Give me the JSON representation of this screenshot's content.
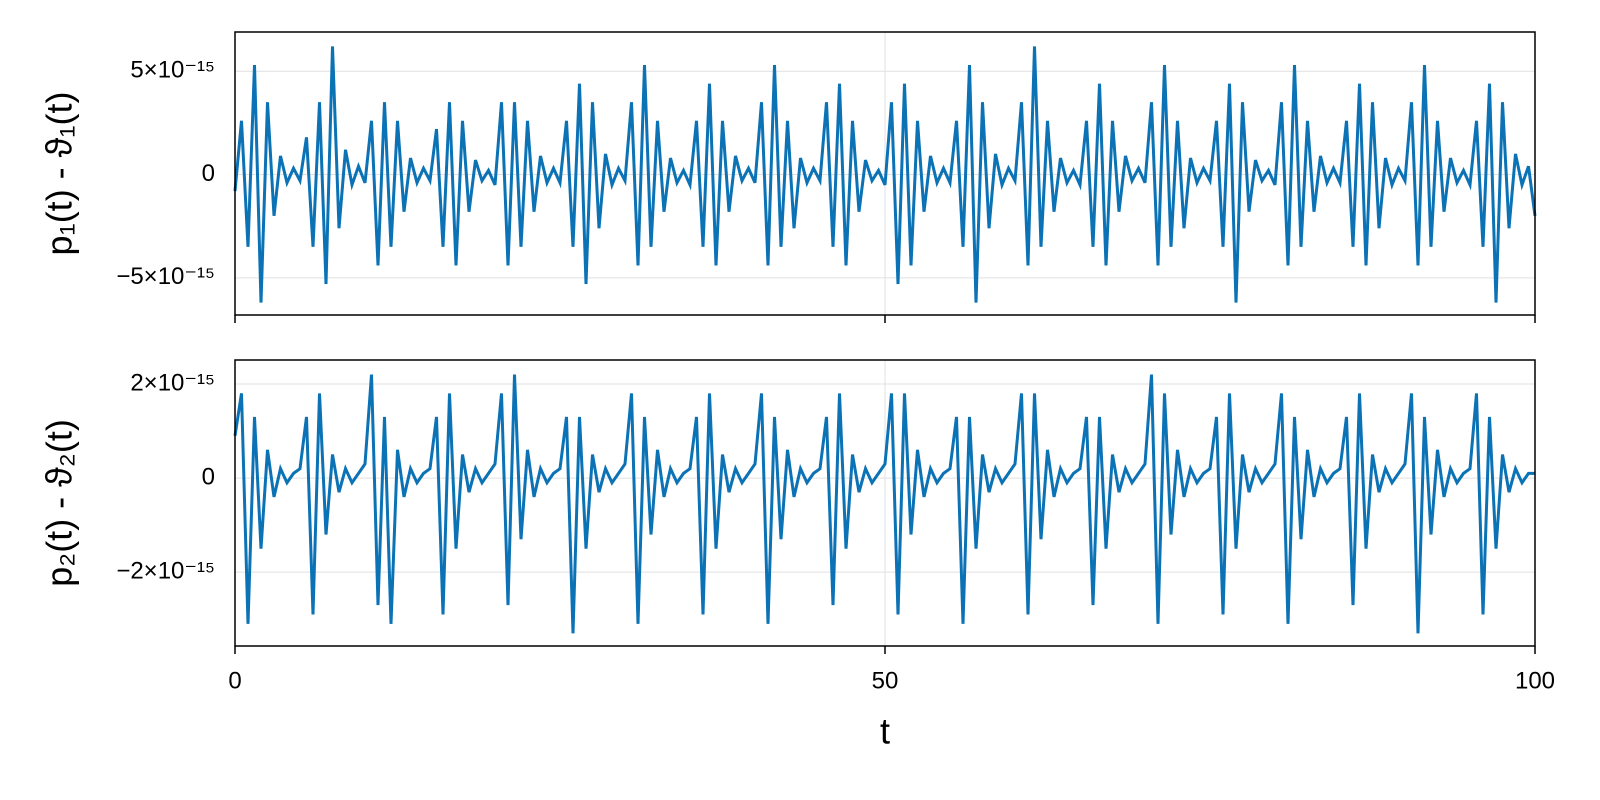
{
  "chart_data": [
    {
      "type": "line",
      "y_label": "p₁(t) - ϑ₁(t)",
      "xlim": [
        0,
        100
      ],
      "xticks": [
        0,
        50,
        100
      ],
      "ylim": [
        -6.8e-15,
        6.9e-15
      ],
      "yticks": [
        {
          "value": -5e-15,
          "label": "−5×10⁻¹⁵"
        },
        0,
        {
          "value": 5e-15,
          "label": "5×10⁻¹⁵"
        }
      ],
      "grid": true,
      "x": [
        0,
        0.5,
        1,
        1.5,
        2,
        2.5,
        3,
        3.5,
        4,
        4.5,
        5,
        5.5,
        6,
        6.5,
        7,
        7.5,
        8,
        8.5,
        9,
        9.5,
        10,
        10.5,
        11,
        11.5,
        12,
        12.5,
        13,
        13.5,
        14,
        14.5,
        15,
        15.5,
        16,
        16.5,
        17,
        17.5,
        18,
        18.5,
        19,
        19.5,
        20,
        20.5,
        21,
        21.5,
        22,
        22.5,
        23,
        23.5,
        24,
        24.5,
        25,
        25.5,
        26,
        26.5,
        27,
        27.5,
        28,
        28.5,
        29,
        29.5,
        30,
        30.5,
        31,
        31.5,
        32,
        32.5,
        33,
        33.5,
        34,
        34.5,
        35,
        35.5,
        36,
        36.5,
        37,
        37.5,
        38,
        38.5,
        39,
        39.5,
        40,
        40.5,
        41,
        41.5,
        42,
        42.5,
        43,
        43.5,
        44,
        44.5,
        45,
        45.5,
        46,
        46.5,
        47,
        47.5,
        48,
        48.5,
        49,
        49.5,
        50,
        50.5,
        51,
        51.5,
        52,
        52.5,
        53,
        53.5,
        54,
        54.5,
        55,
        55.5,
        56,
        56.5,
        57,
        57.5,
        58,
        58.5,
        59,
        59.5,
        60,
        60.5,
        61,
        61.5,
        62,
        62.5,
        63,
        63.5,
        64,
        64.5,
        65,
        65.5,
        66,
        66.5,
        67,
        67.5,
        68,
        68.5,
        69,
        69.5,
        70,
        70.5,
        71,
        71.5,
        72,
        72.5,
        73,
        73.5,
        74,
        74.5,
        75,
        75.5,
        76,
        76.5,
        77,
        77.5,
        78,
        78.5,
        79,
        79.5,
        80,
        80.5,
        81,
        81.5,
        82,
        82.5,
        83,
        83.5,
        84,
        84.5,
        85,
        85.5,
        86,
        86.5,
        87,
        87.5,
        88,
        88.5,
        89,
        89.5,
        90,
        90.5,
        91,
        91.5,
        92,
        92.5,
        93,
        93.5,
        94,
        94.5,
        95,
        95.5,
        96,
        96.5,
        97,
        97.5,
        98,
        98.5,
        99,
        99.5,
        100
      ],
      "series": [
        {
          "color": "#0b72b5",
          "values": [
            -8e-16,
            2.6e-15,
            -3.5e-15,
            5.3e-15,
            -6.2e-15,
            3.5e-15,
            -2e-15,
            9e-16,
            -4e-16,
            3e-16,
            -3e-16,
            1.8e-15,
            -3.5e-15,
            3.5e-15,
            -5.3e-15,
            6.2e-15,
            -2.6e-15,
            1.2e-15,
            -5e-16,
            4e-16,
            -4e-16,
            2.6e-15,
            -4.4e-15,
            3.5e-15,
            -3.5e-15,
            2.6e-15,
            -1.8e-15,
            8e-16,
            -4e-16,
            3e-16,
            -3e-16,
            2.2e-15,
            -3.5e-15,
            3.5e-15,
            -4.4e-15,
            2.6e-15,
            -1.8e-15,
            7e-16,
            -3e-16,
            2e-16,
            -5e-16,
            3.5e-15,
            -4.4e-15,
            3.5e-15,
            -3.5e-15,
            2.6e-15,
            -1.8e-15,
            9e-16,
            -4e-16,
            3e-16,
            -4e-16,
            2.6e-15,
            -3.5e-15,
            4.4e-15,
            -5.3e-15,
            3.5e-15,
            -2.6e-15,
            1e-15,
            -5e-16,
            3e-16,
            -3e-16,
            3.5e-15,
            -4.4e-15,
            5.3e-15,
            -3.5e-15,
            2.6e-15,
            -1.8e-15,
            8e-16,
            -4e-16,
            2e-16,
            -5e-16,
            2.6e-15,
            -3.5e-15,
            4.4e-15,
            -4.4e-15,
            2.6e-15,
            -1.8e-15,
            9e-16,
            -3e-16,
            3e-16,
            -4e-16,
            3.5e-15,
            -4.4e-15,
            5.3e-15,
            -3.5e-15,
            2.6e-15,
            -2.6e-15,
            8e-16,
            -4e-16,
            3e-16,
            -3e-16,
            3.5e-15,
            -3.5e-15,
            4.4e-15,
            -4.4e-15,
            2.6e-15,
            -1.8e-15,
            7e-16,
            -3e-16,
            2e-16,
            -5e-16,
            3.5e-15,
            -5.3e-15,
            4.4e-15,
            -4.4e-15,
            2.6e-15,
            -1.8e-15,
            9e-16,
            -4e-16,
            3e-16,
            -4e-16,
            2.6e-15,
            -3.5e-15,
            5.3e-15,
            -6.2e-15,
            3.5e-15,
            -2.6e-15,
            1e-15,
            -5e-16,
            3e-16,
            -3e-16,
            3.5e-15,
            -4.4e-15,
            6.2e-15,
            -3.5e-15,
            2.6e-15,
            -1.8e-15,
            8e-16,
            -4e-16,
            2e-16,
            -5e-16,
            2.6e-15,
            -3.5e-15,
            4.4e-15,
            -4.4e-15,
            2.6e-15,
            -1.8e-15,
            9e-16,
            -3e-16,
            3e-16,
            -4e-16,
            3.5e-15,
            -4.4e-15,
            5.3e-15,
            -3.5e-15,
            2.6e-15,
            -2.6e-15,
            8e-16,
            -4e-16,
            3e-16,
            -3e-16,
            2.6e-15,
            -3.5e-15,
            4.4e-15,
            -6.2e-15,
            3.5e-15,
            -1.8e-15,
            7e-16,
            -3e-16,
            2e-16,
            -5e-16,
            3.5e-15,
            -4.4e-15,
            5.3e-15,
            -3.5e-15,
            2.6e-15,
            -1.8e-15,
            9e-16,
            -4e-16,
            3e-16,
            -4e-16,
            2.6e-15,
            -3.5e-15,
            4.4e-15,
            -4.4e-15,
            3.5e-15,
            -2.6e-15,
            8e-16,
            -5e-16,
            3e-16,
            -3e-16,
            3.5e-15,
            -4.4e-15,
            5.3e-15,
            -3.5e-15,
            2.6e-15,
            -1.8e-15,
            8e-16,
            -4e-16,
            2e-16,
            -5e-16,
            2.6e-15,
            -3.5e-15,
            4.4e-15,
            -6.2e-15,
            3.5e-15,
            -2.6e-15,
            1e-15,
            -5e-16,
            4e-16,
            -2e-15
          ]
        }
      ]
    },
    {
      "type": "line",
      "y_label": "p₂(t) - ϑ₂(t)",
      "x_label": "t",
      "xlim": [
        0,
        100
      ],
      "xticks": [
        0,
        50,
        100
      ],
      "ylim": [
        -3.57e-15,
        2.51e-15
      ],
      "yticks": [
        {
          "value": -2e-15,
          "label": "−2×10⁻¹⁵"
        },
        0,
        {
          "value": 2e-15,
          "label": "2×10⁻¹⁵"
        }
      ],
      "grid": true,
      "x": [
        0,
        0.5,
        1,
        1.5,
        2,
        2.5,
        3,
        3.5,
        4,
        4.5,
        5,
        5.5,
        6,
        6.5,
        7,
        7.5,
        8,
        8.5,
        9,
        9.5,
        10,
        10.5,
        11,
        11.5,
        12,
        12.5,
        13,
        13.5,
        14,
        14.5,
        15,
        15.5,
        16,
        16.5,
        17,
        17.5,
        18,
        18.5,
        19,
        19.5,
        20,
        20.5,
        21,
        21.5,
        22,
        22.5,
        23,
        23.5,
        24,
        24.5,
        25,
        25.5,
        26,
        26.5,
        27,
        27.5,
        28,
        28.5,
        29,
        29.5,
        30,
        30.5,
        31,
        31.5,
        32,
        32.5,
        33,
        33.5,
        34,
        34.5,
        35,
        35.5,
        36,
        36.5,
        37,
        37.5,
        38,
        38.5,
        39,
        39.5,
        40,
        40.5,
        41,
        41.5,
        42,
        42.5,
        43,
        43.5,
        44,
        44.5,
        45,
        45.5,
        46,
        46.5,
        47,
        47.5,
        48,
        48.5,
        49,
        49.5,
        50,
        50.5,
        51,
        51.5,
        52,
        52.5,
        53,
        53.5,
        54,
        54.5,
        55,
        55.5,
        56,
        56.5,
        57,
        57.5,
        58,
        58.5,
        59,
        59.5,
        60,
        60.5,
        61,
        61.5,
        62,
        62.5,
        63,
        63.5,
        64,
        64.5,
        65,
        65.5,
        66,
        66.5,
        67,
        67.5,
        68,
        68.5,
        69,
        69.5,
        70,
        70.5,
        71,
        71.5,
        72,
        72.5,
        73,
        73.5,
        74,
        74.5,
        75,
        75.5,
        76,
        76.5,
        77,
        77.5,
        78,
        78.5,
        79,
        79.5,
        80,
        80.5,
        81,
        81.5,
        82,
        82.5,
        83,
        83.5,
        84,
        84.5,
        85,
        85.5,
        86,
        86.5,
        87,
        87.5,
        88,
        88.5,
        89,
        89.5,
        90,
        90.5,
        91,
        91.5,
        92,
        92.5,
        93,
        93.5,
        94,
        94.5,
        95,
        95.5,
        96,
        96.5,
        97,
        97.5,
        98,
        98.5,
        99,
        99.5,
        100
      ],
      "series": [
        {
          "color": "#0b72b5",
          "values": [
            9e-16,
            1.8e-15,
            -3.1e-15,
            1.3e-15,
            -1.5e-15,
            6e-16,
            -4e-16,
            2e-16,
            -1e-16,
            1e-16,
            2e-16,
            1.3e-15,
            -2.9e-15,
            1.8e-15,
            -1.2e-15,
            5e-16,
            -3e-16,
            2e-16,
            -1e-16,
            1e-16,
            3e-16,
            2.2e-15,
            -2.7e-15,
            1.3e-15,
            -3.1e-15,
            6e-16,
            -4e-16,
            2e-16,
            -1e-16,
            1e-16,
            2e-16,
            1.3e-15,
            -2.9e-15,
            1.8e-15,
            -1.5e-15,
            5e-16,
            -3e-16,
            2e-16,
            -1e-16,
            1e-16,
            3e-16,
            1.8e-15,
            -2.7e-15,
            2.2e-15,
            -1.3e-15,
            6e-16,
            -4e-16,
            2e-16,
            -1e-16,
            1e-16,
            2e-16,
            1.3e-15,
            -3.3e-15,
            1.3e-15,
            -1.5e-15,
            5e-16,
            -3e-16,
            2e-16,
            -1e-16,
            1e-16,
            3e-16,
            1.8e-15,
            -3.1e-15,
            1.3e-15,
            -1.2e-15,
            6e-16,
            -4e-16,
            2e-16,
            -1e-16,
            1e-16,
            2e-16,
            1.3e-15,
            -2.9e-15,
            1.8e-15,
            -1.5e-15,
            5e-16,
            -3e-16,
            2e-16,
            -1e-16,
            1e-16,
            3e-16,
            1.8e-15,
            -3.1e-15,
            1.3e-15,
            -1.3e-15,
            6e-16,
            -4e-16,
            2e-16,
            -1e-16,
            1e-16,
            2e-16,
            1.3e-15,
            -2.7e-15,
            1.8e-15,
            -1.5e-15,
            5e-16,
            -3e-16,
            2e-16,
            -1e-16,
            1e-16,
            3e-16,
            1.8e-15,
            -2.9e-15,
            1.8e-15,
            -1.2e-15,
            6e-16,
            -4e-16,
            2e-16,
            -1e-16,
            1e-16,
            2e-16,
            1.3e-15,
            -3.1e-15,
            1.3e-15,
            -1.5e-15,
            5e-16,
            -3e-16,
            2e-16,
            -1e-16,
            1e-16,
            3e-16,
            1.8e-15,
            -2.9e-15,
            1.8e-15,
            -1.3e-15,
            6e-16,
            -4e-16,
            2e-16,
            -1e-16,
            1e-16,
            2e-16,
            1.3e-15,
            -2.7e-15,
            1.3e-15,
            -1.5e-15,
            5e-16,
            -3e-16,
            2e-16,
            -1e-16,
            1e-16,
            3e-16,
            2.2e-15,
            -3.1e-15,
            1.8e-15,
            -1.2e-15,
            6e-16,
            -4e-16,
            2e-16,
            -1e-16,
            1e-16,
            2e-16,
            1.3e-15,
            -2.9e-15,
            1.8e-15,
            -1.5e-15,
            5e-16,
            -3e-16,
            2e-16,
            -1e-16,
            1e-16,
            3e-16,
            1.8e-15,
            -3.1e-15,
            1.3e-15,
            -1.3e-15,
            6e-16,
            -4e-16,
            2e-16,
            -1e-16,
            1e-16,
            2e-16,
            1.3e-15,
            -2.7e-15,
            1.8e-15,
            -1.5e-15,
            5e-16,
            -3e-16,
            2e-16,
            -1e-16,
            1e-16,
            3e-16,
            1.8e-15,
            -3.3e-15,
            1.3e-15,
            -1.2e-15,
            6e-16,
            -4e-16,
            2e-16,
            -1e-16,
            1e-16,
            2e-16,
            1.8e-15,
            -2.9e-15,
            1.3e-15,
            -1.5e-15,
            5e-16,
            -3e-16,
            2e-16,
            -1e-16,
            1e-16,
            1e-16
          ]
        }
      ]
    }
  ]
}
